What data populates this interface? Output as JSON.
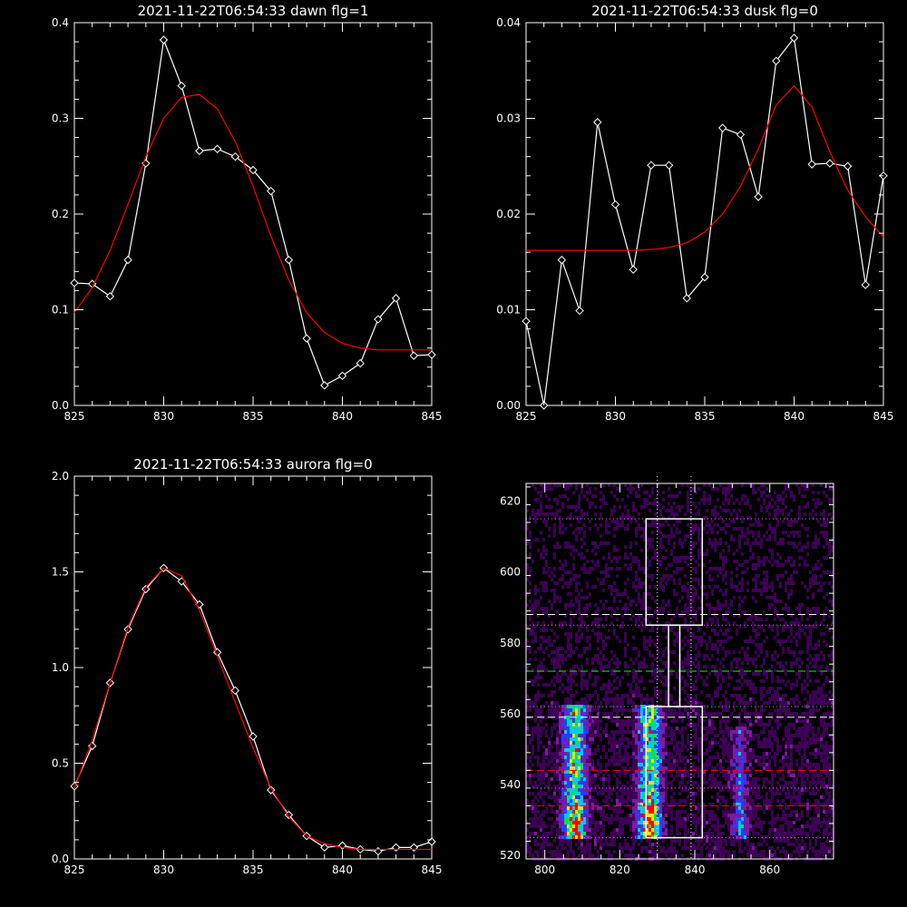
{
  "chart_data": [
    {
      "type": "line",
      "title": "2021-11-22T06:54:33 dawn flg=1",
      "xlim": [
        825,
        845
      ],
      "ylim": [
        0,
        0.4
      ],
      "xticks": [
        825,
        830,
        835,
        840,
        845
      ],
      "yticks": [
        0.0,
        0.1,
        0.2,
        0.3,
        0.4
      ],
      "xtick_labels": [
        "825",
        "830",
        "835",
        "840",
        "845"
      ],
      "ytick_labels": [
        "0.0",
        "0.1",
        "0.2",
        "0.3",
        "0.4"
      ],
      "series": [
        {
          "color": "#ffffff",
          "marker": "diamond",
          "x": [
            825,
            826,
            827,
            828,
            829,
            830,
            831,
            832,
            833,
            834,
            835,
            836,
            837,
            838,
            839,
            840,
            841,
            842,
            843,
            844,
            845
          ],
          "y": [
            0.128,
            0.127,
            0.114,
            0.152,
            0.253,
            0.382,
            0.334,
            0.266,
            0.268,
            0.26,
            0.246,
            0.224,
            0.152,
            0.07,
            0.021,
            0.031,
            0.044,
            0.09,
            0.112,
            0.052,
            0.053
          ]
        },
        {
          "color": "#ff0000",
          "marker": "none",
          "x": [
            825,
            826,
            827,
            828,
            829,
            830,
            831,
            832,
            833,
            834,
            835,
            836,
            837,
            838,
            839,
            840,
            841,
            842,
            843,
            844,
            845
          ],
          "y": [
            0.097,
            0.123,
            0.162,
            0.21,
            0.26,
            0.3,
            0.322,
            0.325,
            0.31,
            0.276,
            0.229,
            0.177,
            0.131,
            0.097,
            0.076,
            0.065,
            0.06,
            0.058,
            0.058,
            0.058,
            0.058
          ]
        }
      ]
    },
    {
      "type": "line",
      "title": "2021-11-22T06:54:33 dusk flg=0",
      "xlim": [
        825,
        845
      ],
      "ylim": [
        0,
        0.04
      ],
      "xticks": [
        825,
        830,
        835,
        840,
        845
      ],
      "yticks": [
        0.0,
        0.01,
        0.02,
        0.03,
        0.04
      ],
      "xtick_labels": [
        "825",
        "830",
        "835",
        "840",
        "845"
      ],
      "ytick_labels": [
        "0.00",
        "0.01",
        "0.02",
        "0.03",
        "0.04"
      ],
      "series": [
        {
          "color": "#ffffff",
          "marker": "diamond",
          "x": [
            825,
            826,
            827,
            828,
            829,
            830,
            831,
            832,
            833,
            834,
            835,
            836,
            837,
            838,
            839,
            840,
            841,
            842,
            843,
            844,
            845
          ],
          "y": [
            0.0088,
            0.0,
            0.0152,
            0.0099,
            0.0296,
            0.021,
            0.0142,
            0.0251,
            0.0251,
            0.0112,
            0.0134,
            0.029,
            0.0283,
            0.0218,
            0.036,
            0.0384,
            0.0252,
            0.0253,
            0.025,
            0.0126,
            0.024
          ]
        },
        {
          "color": "#ff0000",
          "marker": "none",
          "x": [
            825,
            826,
            827,
            828,
            829,
            830,
            831,
            832,
            833,
            834,
            835,
            836,
            837,
            838,
            839,
            840,
            841,
            842,
            843,
            844,
            845
          ],
          "y": [
            0.0162,
            0.0162,
            0.0162,
            0.0162,
            0.0162,
            0.0162,
            0.0162,
            0.0163,
            0.0165,
            0.017,
            0.0181,
            0.02,
            0.0229,
            0.0268,
            0.0314,
            0.0334,
            0.0312,
            0.0265,
            0.0225,
            0.0197,
            0.0176
          ]
        }
      ]
    },
    {
      "type": "line",
      "title": "2021-11-22T06:54:33 aurora flg=0",
      "xlim": [
        825,
        845
      ],
      "ylim": [
        0,
        2.0
      ],
      "xticks": [
        825,
        830,
        835,
        840,
        845
      ],
      "yticks": [
        0.0,
        0.5,
        1.0,
        1.5,
        2.0
      ],
      "xtick_labels": [
        "825",
        "830",
        "835",
        "840",
        "845"
      ],
      "ytick_labels": [
        "0.0",
        "0.5",
        "1.0",
        "1.5",
        "2.0"
      ],
      "series": [
        {
          "color": "#ffffff",
          "marker": "diamond",
          "x": [
            825,
            826,
            827,
            828,
            829,
            830,
            831,
            832,
            833,
            834,
            835,
            836,
            837,
            838,
            839,
            840,
            841,
            842,
            843,
            844,
            845
          ],
          "y": [
            0.38,
            0.59,
            0.92,
            1.2,
            1.41,
            1.52,
            1.45,
            1.33,
            1.08,
            0.88,
            0.64,
            0.36,
            0.23,
            0.12,
            0.06,
            0.07,
            0.05,
            0.04,
            0.06,
            0.06,
            0.09
          ]
        },
        {
          "color": "#ff0000",
          "marker": "none",
          "x": [
            825,
            826,
            827,
            828,
            829,
            830,
            831,
            832,
            833,
            834,
            835,
            836,
            837,
            838,
            839,
            840,
            841,
            842,
            843,
            844,
            845
          ],
          "y": [
            0.37,
            0.62,
            0.92,
            1.21,
            1.42,
            1.52,
            1.48,
            1.3,
            1.06,
            0.82,
            0.58,
            0.37,
            0.22,
            0.12,
            0.08,
            0.06,
            0.05,
            0.05,
            0.05,
            0.05,
            0.05
          ]
        }
      ]
    },
    {
      "type": "heatmap",
      "title": "",
      "xlim": [
        795,
        877
      ],
      "ylim": [
        519,
        625
      ],
      "xticks": [
        800,
        820,
        840,
        860
      ],
      "yticks": [
        520,
        540,
        560,
        580,
        600,
        620
      ],
      "xtick_labels": [
        "800",
        "820",
        "840",
        "860"
      ],
      "ytick_labels": [
        "520",
        "540",
        "560",
        "580",
        "600",
        "620"
      ],
      "colormap": [
        "#000000",
        "#3d0055",
        "#7a1aa0",
        "#2a3cff",
        "#00c8ff",
        "#00e060",
        "#e8e800",
        "#ff0000"
      ],
      "intensity_bands": [
        {
          "x_center": 808,
          "x_halfwidth": 3,
          "y_from": 525,
          "y_to": 563,
          "peak": 1.0
        },
        {
          "x_center": 828,
          "x_halfwidth": 3,
          "y_from": 525,
          "y_to": 563,
          "peak": 1.0
        },
        {
          "x_center": 852,
          "x_halfwidth": 2,
          "y_from": 525,
          "y_to": 556,
          "peak": 0.45
        }
      ],
      "rectangles": [
        {
          "x0": 827,
          "x1": 842,
          "y0": 585,
          "y1": 615
        },
        {
          "x0": 833,
          "x1": 836,
          "y0": 562,
          "y1": 585
        },
        {
          "x0": 827,
          "x1": 842,
          "y0": 525,
          "y1": 562
        }
      ],
      "hlines": [
        {
          "y": 615,
          "color": "#ff66ff",
          "style": "dotted"
        },
        {
          "y": 588,
          "color": "#ffffff",
          "style": "dashed"
        },
        {
          "y": 585,
          "color": "#ff66ff",
          "style": "dotted"
        },
        {
          "y": 572,
          "color": "#00ff00",
          "style": "dashed"
        },
        {
          "y": 562,
          "color": "#00ff00",
          "style": "dotted"
        },
        {
          "y": 559,
          "color": "#ffffff",
          "style": "dashed"
        },
        {
          "y": 544,
          "color": "#ff0000",
          "style": "dashed"
        },
        {
          "y": 539,
          "color": "#ff66ff",
          "style": "dotted"
        },
        {
          "y": 534,
          "color": "#ff0000",
          "style": "dashed"
        },
        {
          "y": 525,
          "color": "#ff66ff",
          "style": "dotted"
        }
      ],
      "vlines": [
        {
          "x": 830,
          "color": "#ffffff",
          "style": "dotted"
        },
        {
          "x": 839,
          "color": "#ffffff",
          "style": "dotted"
        }
      ]
    }
  ]
}
